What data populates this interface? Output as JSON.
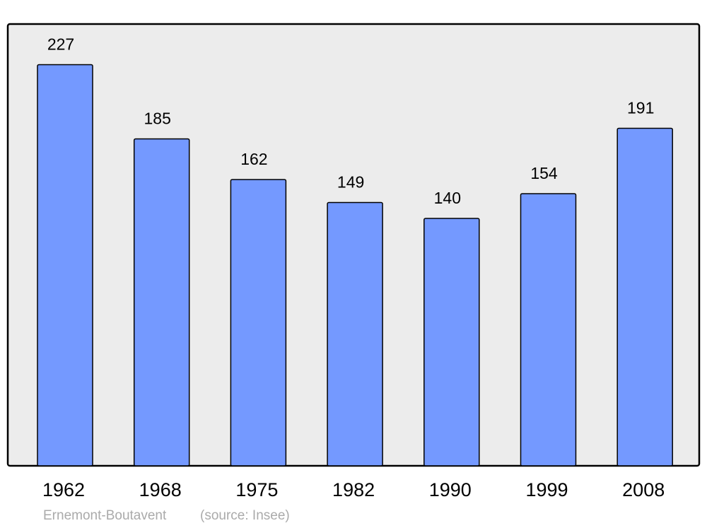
{
  "chart_data": {
    "type": "bar",
    "categories": [
      "1962",
      "1968",
      "1975",
      "1982",
      "1990",
      "1999",
      "2008"
    ],
    "values": [
      227,
      185,
      162,
      149,
      140,
      154,
      191
    ],
    "color": "#7499ff",
    "caption": "Ernemont-Boutavent",
    "source": "(source: Insee)"
  }
}
